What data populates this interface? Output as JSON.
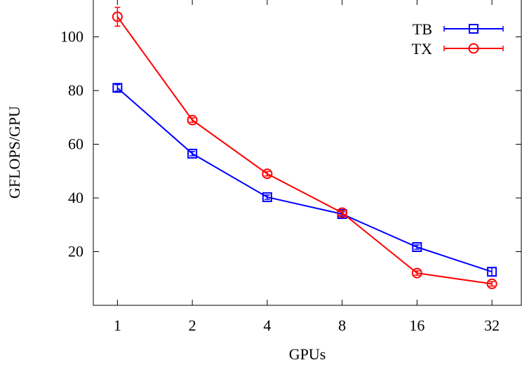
{
  "chart_data": {
    "type": "line",
    "title": "",
    "xlabel": "GPUs",
    "ylabel": "GFLOPS/GPU",
    "x_scale": "log2",
    "categories": [
      "1",
      "2",
      "4",
      "8",
      "16",
      "32"
    ],
    "x": [
      1,
      2,
      4,
      8,
      16,
      32
    ],
    "xlim": [
      0.8,
      42
    ],
    "ylim": [
      0,
      114
    ],
    "yticks": [
      20,
      40,
      60,
      80,
      100
    ],
    "grid": false,
    "legend_position": "top-right",
    "series": [
      {
        "name": "TB",
        "color": "#0000ff",
        "marker": "square",
        "values": [
          81,
          56.5,
          40.3,
          34,
          21.7,
          12.5
        ],
        "errors": [
          1.2,
          0.8,
          0.8,
          0.8,
          0.8,
          1.5
        ]
      },
      {
        "name": "TX",
        "color": "#ff0000",
        "marker": "circle",
        "values": [
          107.5,
          69,
          49,
          34.5,
          12,
          8
        ],
        "errors": [
          3.5,
          0.8,
          0.8,
          0.8,
          0.8,
          0.8
        ]
      }
    ]
  }
}
